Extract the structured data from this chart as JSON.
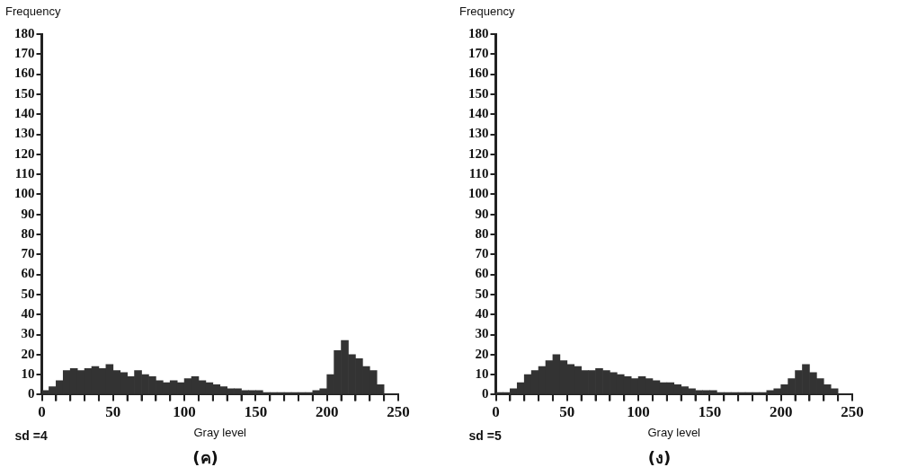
{
  "chart_data": [
    {
      "type": "histogram",
      "title": "(ค)",
      "xlabel": "Gray level",
      "ylabel": "Frequency",
      "annotations": [
        "sd =4"
      ],
      "color": "#333333",
      "grid": false,
      "legend": false,
      "bins": [
        0,
        5,
        10,
        15,
        20,
        25,
        30,
        35,
        40,
        45,
        50,
        55,
        60,
        65,
        70,
        75,
        80,
        85,
        90,
        95,
        100,
        105,
        110,
        115,
        120,
        125,
        130,
        135,
        140,
        145,
        150,
        155,
        160,
        165,
        170,
        175,
        180,
        185,
        190,
        195,
        200,
        205,
        210,
        215,
        220,
        225,
        230,
        235,
        240,
        245,
        250
      ],
      "values": [
        2,
        4,
        7,
        12,
        13,
        12,
        13,
        14,
        13,
        15,
        12,
        11,
        9,
        12,
        10,
        9,
        7,
        6,
        7,
        6,
        8,
        9,
        7,
        6,
        5,
        4,
        3,
        3,
        2,
        2,
        2,
        1,
        1,
        1,
        1,
        1,
        1,
        1,
        2,
        3,
        10,
        22,
        27,
        20,
        18,
        14,
        12,
        5,
        0,
        0
      ],
      "xlim": [
        0,
        250
      ],
      "xticks": [
        0,
        {
          "value": 10,
          "label": null
        },
        {
          "value": 20,
          "label": null
        },
        {
          "value": 30,
          "label": null
        },
        {
          "value": 40,
          "label": null
        },
        50,
        {
          "value": 60,
          "label": null
        },
        {
          "value": 70,
          "label": null
        },
        {
          "value": 80,
          "label": null
        },
        {
          "value": 90,
          "label": null
        },
        100,
        {
          "value": 110,
          "label": null
        },
        {
          "value": 120,
          "label": null
        },
        {
          "value": 130,
          "label": null
        },
        {
          "value": 140,
          "label": null
        },
        150,
        {
          "value": 160,
          "label": null
        },
        {
          "value": 170,
          "label": null
        },
        {
          "value": 180,
          "label": null
        },
        {
          "value": 190,
          "label": null
        },
        200,
        {
          "value": 210,
          "label": null
        },
        {
          "value": 220,
          "label": null
        },
        {
          "value": 230,
          "label": null
        },
        {
          "value": 240,
          "label": null
        },
        250
      ],
      "ylim": [
        0,
        180
      ],
      "yticks": [
        0,
        10,
        20,
        30,
        40,
        50,
        60,
        70,
        80,
        90,
        100,
        110,
        120,
        130,
        140,
        150,
        160,
        170,
        180
      ]
    },
    {
      "type": "histogram",
      "title": "(ง)",
      "xlabel": "Gray level",
      "ylabel": "Frequency",
      "annotations": [
        "sd =5"
      ],
      "color": "#333333",
      "grid": false,
      "legend": false,
      "bins": [
        0,
        5,
        10,
        15,
        20,
        25,
        30,
        35,
        40,
        45,
        50,
        55,
        60,
        65,
        70,
        75,
        80,
        85,
        90,
        95,
        100,
        105,
        110,
        115,
        120,
        125,
        130,
        135,
        140,
        145,
        150,
        155,
        160,
        165,
        170,
        175,
        180,
        185,
        190,
        195,
        200,
        205,
        210,
        215,
        220,
        225,
        230,
        235,
        240,
        245,
        250
      ],
      "values": [
        1,
        1,
        3,
        6,
        10,
        12,
        14,
        17,
        20,
        17,
        15,
        14,
        12,
        12,
        13,
        12,
        11,
        10,
        9,
        8,
        9,
        8,
        7,
        6,
        6,
        5,
        4,
        3,
        2,
        2,
        2,
        1,
        1,
        1,
        1,
        1,
        1,
        1,
        2,
        3,
        5,
        8,
        12,
        15,
        11,
        8,
        5,
        3,
        0,
        0
      ],
      "xlim": [
        0,
        250
      ],
      "xticks": [
        0,
        {
          "value": 10,
          "label": null
        },
        {
          "value": 20,
          "label": null
        },
        {
          "value": 30,
          "label": null
        },
        {
          "value": 40,
          "label": null
        },
        50,
        {
          "value": 60,
          "label": null
        },
        {
          "value": 70,
          "label": null
        },
        {
          "value": 80,
          "label": null
        },
        {
          "value": 90,
          "label": null
        },
        100,
        {
          "value": 110,
          "label": null
        },
        {
          "value": 120,
          "label": null
        },
        {
          "value": 130,
          "label": null
        },
        {
          "value": 140,
          "label": null
        },
        150,
        {
          "value": 160,
          "label": null
        },
        {
          "value": 170,
          "label": null
        },
        {
          "value": 180,
          "label": null
        },
        {
          "value": 190,
          "label": null
        },
        200,
        {
          "value": 210,
          "label": null
        },
        {
          "value": 220,
          "label": null
        },
        {
          "value": 230,
          "label": null
        },
        {
          "value": 240,
          "label": null
        },
        250
      ],
      "ylim": [
        0,
        180
      ],
      "yticks": [
        0,
        10,
        20,
        30,
        40,
        50,
        60,
        70,
        80,
        90,
        100,
        110,
        120,
        130,
        140,
        150,
        160,
        170,
        180
      ]
    }
  ]
}
